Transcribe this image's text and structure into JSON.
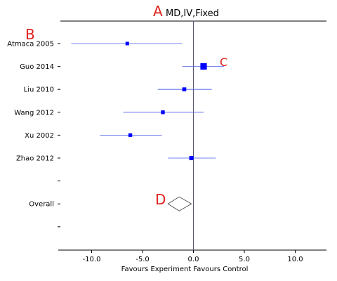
{
  "chart_data": {
    "type": "forest",
    "title": "MD,IV,Fixed",
    "xlabel": "Favours Experiment  Favours Control",
    "xlim": [
      -13,
      13
    ],
    "xticks": [
      -10,
      -5,
      0,
      5,
      10
    ],
    "xtick_labels": [
      "-10.0",
      "-5.0",
      "0.0",
      "5.0",
      "10.0"
    ],
    "reference_line": 0,
    "studies": [
      {
        "label": "Atmaca 2005",
        "estimate": -6.5,
        "ci_low": -12.0,
        "ci_high": -1.1,
        "weight": 1.0
      },
      {
        "label": "Guo 2014",
        "estimate": 1.0,
        "ci_low": -1.1,
        "ci_high": 3.0,
        "weight": 2.2
      },
      {
        "label": "Liu 2010",
        "estimate": -0.9,
        "ci_low": -3.5,
        "ci_high": 1.8,
        "weight": 1.2
      },
      {
        "label": "Wang 2012",
        "estimate": -3.0,
        "ci_low": -6.9,
        "ci_high": 1.0,
        "weight": 1.1
      },
      {
        "label": "Xu 2002",
        "estimate": -6.2,
        "ci_low": -9.2,
        "ci_high": -3.1,
        "weight": 1.1
      },
      {
        "label": "Zhao 2012",
        "estimate": -0.2,
        "ci_low": -2.5,
        "ci_high": 2.2,
        "weight": 1.3
      }
    ],
    "overall": {
      "label": "Overall",
      "estimate": -1.4,
      "ci_low": -2.5,
      "ci_high": -0.2
    },
    "colors": {
      "marker": "#0000ff",
      "ci_line": "#4a5ee8",
      "axis": "#000000",
      "ref_line": "#555577",
      "annotation": "#e0201c"
    },
    "annotations": [
      "A",
      "B",
      "C",
      "D"
    ]
  }
}
